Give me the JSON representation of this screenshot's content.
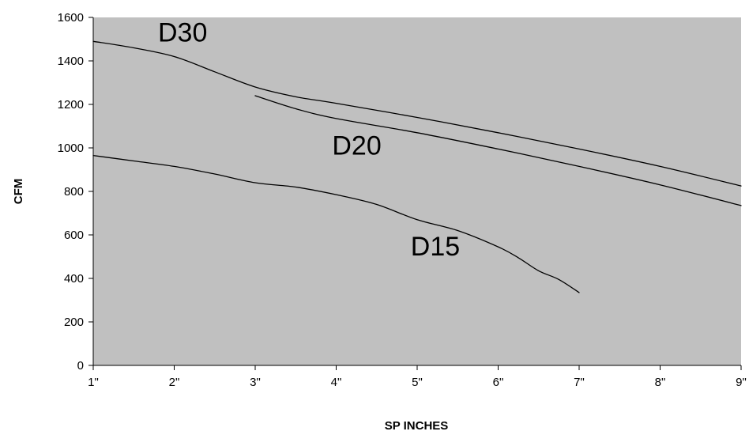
{
  "chart_data": {
    "type": "line",
    "title": "",
    "xlabel": "SP INCHES",
    "ylabel": "CFM",
    "xlim": [
      1,
      9
    ],
    "ylim": [
      0,
      1600
    ],
    "x_ticks": [
      {
        "value": 1,
        "label": "1\""
      },
      {
        "value": 2,
        "label": "2\""
      },
      {
        "value": 3,
        "label": "3\""
      },
      {
        "value": 4,
        "label": "4\""
      },
      {
        "value": 5,
        "label": "5\""
      },
      {
        "value": 6,
        "label": "6\""
      },
      {
        "value": 7,
        "label": "7\""
      },
      {
        "value": 8,
        "label": "8\""
      },
      {
        "value": 9,
        "label": "9\""
      }
    ],
    "y_ticks": [
      {
        "value": 0,
        "label": "0"
      },
      {
        "value": 200,
        "label": "200"
      },
      {
        "value": 400,
        "label": "400"
      },
      {
        "value": 600,
        "label": "600"
      },
      {
        "value": 800,
        "label": "800"
      },
      {
        "value": 1000,
        "label": "1000"
      },
      {
        "value": 1200,
        "label": "1200"
      },
      {
        "value": 1400,
        "label": "1400"
      },
      {
        "value": 1600,
        "label": "1600"
      }
    ],
    "grid": false,
    "plot_background": "#c0c0c0",
    "line_color": "#000000",
    "series": [
      {
        "name": "D30",
        "label_anchor": {
          "x": 1.8,
          "y": 1490
        },
        "points": [
          {
            "x": 1,
            "y": 1490
          },
          {
            "x": 1.5,
            "y": 1460
          },
          {
            "x": 2,
            "y": 1420
          },
          {
            "x": 2.5,
            "y": 1350
          },
          {
            "x": 3,
            "y": 1280
          },
          {
            "x": 3.5,
            "y": 1235
          },
          {
            "x": 4,
            "y": 1205
          },
          {
            "x": 5,
            "y": 1140
          },
          {
            "x": 6,
            "y": 1070
          },
          {
            "x": 7,
            "y": 995
          },
          {
            "x": 8,
            "y": 915
          },
          {
            "x": 9,
            "y": 825
          }
        ]
      },
      {
        "name": "D20",
        "label_anchor": {
          "x": 3.95,
          "y": 970
        },
        "points": [
          {
            "x": 3,
            "y": 1240
          },
          {
            "x": 3.5,
            "y": 1180
          },
          {
            "x": 4,
            "y": 1135
          },
          {
            "x": 5,
            "y": 1070
          },
          {
            "x": 6,
            "y": 995
          },
          {
            "x": 7,
            "y": 915
          },
          {
            "x": 8,
            "y": 830
          },
          {
            "x": 9,
            "y": 735
          }
        ]
      },
      {
        "name": "D15",
        "label_anchor": {
          "x": 4.92,
          "y": 505
        },
        "points": [
          {
            "x": 1,
            "y": 965
          },
          {
            "x": 1.5,
            "y": 940
          },
          {
            "x": 2,
            "y": 915
          },
          {
            "x": 2.5,
            "y": 880
          },
          {
            "x": 3,
            "y": 840
          },
          {
            "x": 3.5,
            "y": 820
          },
          {
            "x": 4,
            "y": 785
          },
          {
            "x": 4.5,
            "y": 740
          },
          {
            "x": 5,
            "y": 670
          },
          {
            "x": 5.5,
            "y": 620
          },
          {
            "x": 6,
            "y": 545
          },
          {
            "x": 6.25,
            "y": 495
          },
          {
            "x": 6.5,
            "y": 435
          },
          {
            "x": 6.75,
            "y": 395
          },
          {
            "x": 7,
            "y": 335
          }
        ]
      }
    ]
  }
}
